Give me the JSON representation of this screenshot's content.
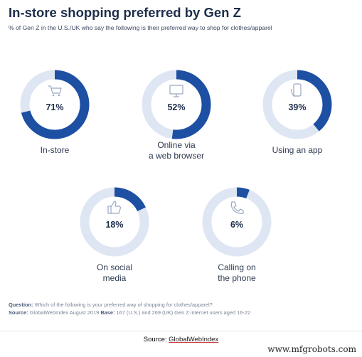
{
  "header": {
    "title": "In-store shopping preferred by Gen Z",
    "subtitle": "% of Gen Z in the U.S./UK who say the following is their preferred way to shop for clothes/apparel"
  },
  "colors": {
    "accent": "#1d4fa3",
    "track": "#dfe6f3",
    "icon": "#9aa8c4"
  },
  "chart_data": {
    "type": "pie",
    "variant": "donut",
    "title": "In-store shopping preferred by Gen Z",
    "subtitle": "% of Gen Z in the U.S./UK who say the following is their preferred way to shop for clothes/apparel",
    "items": [
      {
        "label": "In-store",
        "value": 71,
        "value_label": "71%",
        "icon": "shopping-cart-icon"
      },
      {
        "label": "Online via\na web browser",
        "value": 52,
        "value_label": "52%",
        "icon": "monitor-icon"
      },
      {
        "label": "Using an app",
        "value": 39,
        "value_label": "39%",
        "icon": "smartphone-icon"
      },
      {
        "label": "On social\nmedia",
        "value": 18,
        "value_label": "18%",
        "icon": "thumbs-up-icon"
      },
      {
        "label": "Calling on\nthe phone",
        "value": 6,
        "value_label": "6%",
        "icon": "phone-icon"
      }
    ]
  },
  "footnotes": {
    "question_label": "Question:",
    "question_text": "Which of the following is your preferred way of shopping for clothes/apparel?",
    "source_label": "Source:",
    "source_text": "GlobalWebIndex August 2019",
    "base_label": "Base:",
    "base_text": "167 (U.S.) and 269 (UK) Gen Z internet users aged 16-22"
  },
  "source_line": {
    "prefix": "Source:",
    "link": "GlobalWebIndex"
  },
  "watermark": "www.mfgrobots.com"
}
